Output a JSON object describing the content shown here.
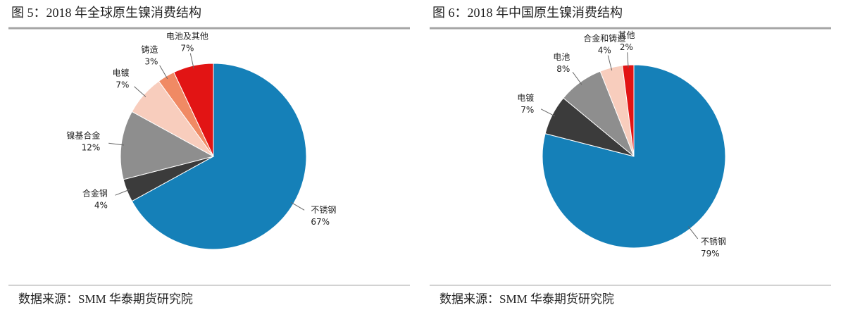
{
  "chart_data": [
    {
      "type": "pie",
      "title": "图 5：2018 年全球原生镍消费结构",
      "categories": [
        "不锈钢",
        "合金钢",
        "镍基合金",
        "电镀",
        "铸造",
        "电池及其他"
      ],
      "values": [
        67,
        4,
        12,
        7,
        3,
        7
      ],
      "value_labels": [
        "67%",
        "4%",
        "12%",
        "7%",
        "3%",
        "7%"
      ],
      "colors": [
        "#1580b8",
        "#3b3b3b",
        "#8e8e8e",
        "#f8cdbd",
        "#f08a64",
        "#e21414"
      ],
      "source": "数据来源：SMM 华泰期货研究院"
    },
    {
      "type": "pie",
      "title": "图 6：2018 年中国原生镍消费结构",
      "categories": [
        "不锈钢",
        "电镀",
        "电池",
        "合金和铸造",
        "其他"
      ],
      "values": [
        79,
        7,
        8,
        4,
        2
      ],
      "value_labels": [
        "79%",
        "7%",
        "8%",
        "4%",
        "2%"
      ],
      "colors": [
        "#1580b8",
        "#3b3b3b",
        "#8e8e8e",
        "#f8cdbd",
        "#e21414"
      ],
      "source": "数据来源：SMM 华泰期货研究院"
    }
  ]
}
